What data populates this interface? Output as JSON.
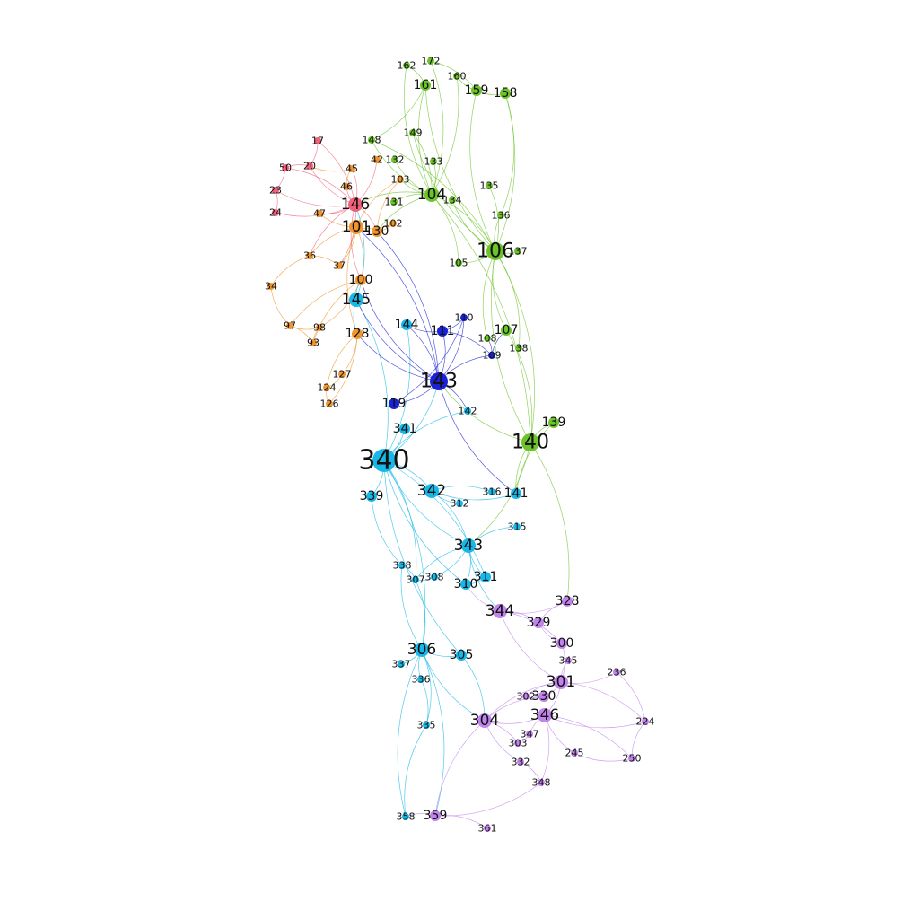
{
  "graph": {
    "communities": {
      "red": {
        "color": "#f0607a"
      },
      "orange": {
        "color": "#f0962e"
      },
      "green": {
        "color": "#6cc42a"
      },
      "blue": {
        "color": "#1a22d6"
      },
      "cyan": {
        "color": "#17b8e8"
      },
      "purple": {
        "color": "#c084ec"
      }
    },
    "nodes": [
      {
        "id": "340",
        "c": "cyan",
        "s": 4
      },
      {
        "id": "140",
        "c": "green",
        "s": 3
      },
      {
        "id": "106",
        "c": "green",
        "s": 3
      },
      {
        "id": "143",
        "c": "blue",
        "s": 3
      },
      {
        "id": "306",
        "c": "cyan",
        "s": 2
      },
      {
        "id": "342",
        "c": "cyan",
        "s": 2
      },
      {
        "id": "343",
        "c": "cyan",
        "s": 2
      },
      {
        "id": "344",
        "c": "purple",
        "s": 2
      },
      {
        "id": "145",
        "c": "cyan",
        "s": 2
      },
      {
        "id": "146",
        "c": "red",
        "s": 2
      },
      {
        "id": "104",
        "c": "green",
        "s": 2
      },
      {
        "id": "301",
        "c": "purple",
        "s": 2
      },
      {
        "id": "304",
        "c": "purple",
        "s": 2
      },
      {
        "id": "346",
        "c": "purple",
        "s": 2
      },
      {
        "id": "359",
        "c": "purple",
        "s": 1
      },
      {
        "id": "101",
        "c": "orange",
        "s": 2
      },
      {
        "id": "130",
        "c": "orange",
        "s": 1
      },
      {
        "id": "100",
        "c": "orange",
        "s": 1
      },
      {
        "id": "144",
        "c": "cyan",
        "s": 1
      },
      {
        "id": "128",
        "c": "orange",
        "s": 1
      },
      {
        "id": "141",
        "c": "cyan",
        "s": 1
      },
      {
        "id": "139",
        "c": "green",
        "s": 1
      },
      {
        "id": "107",
        "c": "green",
        "s": 1
      },
      {
        "id": "159",
        "c": "green",
        "s": 1
      },
      {
        "id": "158",
        "c": "green",
        "s": 1
      },
      {
        "id": "161",
        "c": "green",
        "s": 1
      },
      {
        "id": "105",
        "c": "green",
        "s": 0
      },
      {
        "id": "137",
        "c": "green",
        "s": 0
      },
      {
        "id": "136",
        "c": "green",
        "s": 0
      },
      {
        "id": "135",
        "c": "green",
        "s": 0
      },
      {
        "id": "134",
        "c": "green",
        "s": 0
      },
      {
        "id": "133",
        "c": "green",
        "s": 0
      },
      {
        "id": "132",
        "c": "green",
        "s": 0
      },
      {
        "id": "131",
        "c": "green",
        "s": 0
      },
      {
        "id": "108",
        "c": "green",
        "s": 0
      },
      {
        "id": "138",
        "c": "green",
        "s": 0
      },
      {
        "id": "148",
        "c": "green",
        "s": 0
      },
      {
        "id": "149",
        "c": "green",
        "s": 0
      },
      {
        "id": "160",
        "c": "green",
        "s": 0
      },
      {
        "id": "172",
        "c": "green",
        "s": 0
      },
      {
        "id": "162",
        "c": "green",
        "s": 0
      },
      {
        "id": "341",
        "c": "cyan",
        "s": 1
      },
      {
        "id": "339",
        "c": "cyan",
        "s": 1
      },
      {
        "id": "312",
        "c": "cyan",
        "s": 0
      },
      {
        "id": "316",
        "c": "cyan",
        "s": 0
      },
      {
        "id": "315",
        "c": "cyan",
        "s": 0
      },
      {
        "id": "311",
        "c": "cyan",
        "s": 1
      },
      {
        "id": "310",
        "c": "cyan",
        "s": 1
      },
      {
        "id": "307",
        "c": "cyan",
        "s": 0
      },
      {
        "id": "308",
        "c": "cyan",
        "s": 0
      },
      {
        "id": "338",
        "c": "cyan",
        "s": 0
      },
      {
        "id": "305",
        "c": "cyan",
        "s": 1
      },
      {
        "id": "337",
        "c": "cyan",
        "s": 0
      },
      {
        "id": "336",
        "c": "cyan",
        "s": 0
      },
      {
        "id": "335",
        "c": "cyan",
        "s": 0
      },
      {
        "id": "358",
        "c": "cyan",
        "s": 0
      },
      {
        "id": "142",
        "c": "cyan",
        "s": 0
      },
      {
        "id": "300",
        "c": "purple",
        "s": 1
      },
      {
        "id": "329",
        "c": "purple",
        "s": 1
      },
      {
        "id": "328",
        "c": "purple",
        "s": 1
      },
      {
        "id": "330",
        "c": "purple",
        "s": 1
      },
      {
        "id": "302",
        "c": "purple",
        "s": 0
      },
      {
        "id": "303",
        "c": "purple",
        "s": 0
      },
      {
        "id": "347",
        "c": "purple",
        "s": 0
      },
      {
        "id": "348",
        "c": "purple",
        "s": 0
      },
      {
        "id": "345",
        "c": "purple",
        "s": 0
      },
      {
        "id": "332",
        "c": "purple",
        "s": 0
      },
      {
        "id": "361",
        "c": "purple",
        "s": 0
      },
      {
        "id": "224",
        "c": "purple",
        "s": 0
      },
      {
        "id": "236",
        "c": "purple",
        "s": 0
      },
      {
        "id": "250",
        "c": "purple",
        "s": 0
      },
      {
        "id": "245",
        "c": "purple",
        "s": 0
      },
      {
        "id": "47",
        "c": "orange",
        "s": 0
      },
      {
        "id": "45",
        "c": "orange",
        "s": 0
      },
      {
        "id": "97",
        "c": "orange",
        "s": 0
      },
      {
        "id": "98",
        "c": "orange",
        "s": 0
      },
      {
        "id": "93",
        "c": "orange",
        "s": 0
      },
      {
        "id": "127",
        "c": "orange",
        "s": 0
      },
      {
        "id": "124",
        "c": "orange",
        "s": 0
      },
      {
        "id": "126",
        "c": "orange",
        "s": 0
      },
      {
        "id": "36",
        "c": "orange",
        "s": 0
      },
      {
        "id": "37",
        "c": "orange",
        "s": 0
      },
      {
        "id": "34",
        "c": "orange",
        "s": 0
      },
      {
        "id": "103",
        "c": "orange",
        "s": 0
      },
      {
        "id": "102",
        "c": "orange",
        "s": 0
      },
      {
        "id": "42",
        "c": "orange",
        "s": 0
      },
      {
        "id": "46",
        "c": "orange",
        "s": 0
      },
      {
        "id": "20",
        "c": "red",
        "s": 0
      },
      {
        "id": "50",
        "c": "red",
        "s": 0
      },
      {
        "id": "24",
        "c": "red",
        "s": 0
      },
      {
        "id": "17",
        "c": "red",
        "s": 0
      },
      {
        "id": "23",
        "c": "red",
        "s": 0
      },
      {
        "id": "111",
        "c": "blue",
        "s": 1
      },
      {
        "id": "119",
        "c": "blue",
        "s": 1
      },
      {
        "id": "110",
        "c": "blue",
        "s": 0
      },
      {
        "id": "109",
        "c": "blue",
        "s": 0
      }
    ],
    "edges": [
      [
        "340",
        "143"
      ],
      [
        "340",
        "342"
      ],
      [
        "340",
        "341"
      ],
      [
        "340",
        "339"
      ],
      [
        "340",
        "145"
      ],
      [
        "340",
        "306"
      ],
      [
        "340",
        "144"
      ],
      [
        "340",
        "142"
      ],
      [
        "340",
        "343"
      ],
      [
        "340",
        "311"
      ],
      [
        "340",
        "310"
      ],
      [
        "340",
        "307"
      ],
      [
        "340",
        "305"
      ],
      [
        "140",
        "139"
      ],
      [
        "140",
        "107"
      ],
      [
        "140",
        "106"
      ],
      [
        "140",
        "104"
      ],
      [
        "140",
        "143"
      ],
      [
        "140",
        "141"
      ],
      [
        "140",
        "343"
      ],
      [
        "106",
        "104"
      ],
      [
        "106",
        "105"
      ],
      [
        "106",
        "137"
      ],
      [
        "106",
        "136"
      ],
      [
        "106",
        "135"
      ],
      [
        "106",
        "134"
      ],
      [
        "106",
        "108"
      ],
      [
        "106",
        "138"
      ],
      [
        "106",
        "107"
      ],
      [
        "106",
        "159"
      ],
      [
        "106",
        "158"
      ],
      [
        "106",
        "161"
      ],
      [
        "106",
        "148"
      ],
      [
        "106",
        "149"
      ],
      [
        "104",
        "133"
      ],
      [
        "104",
        "132"
      ],
      [
        "104",
        "131"
      ],
      [
        "104",
        "148"
      ],
      [
        "104",
        "160"
      ],
      [
        "104",
        "162"
      ],
      [
        "104",
        "172"
      ],
      [
        "104",
        "161"
      ],
      [
        "104",
        "149"
      ],
      [
        "104",
        "103"
      ],
      [
        "104",
        "130"
      ],
      [
        "104",
        "105"
      ],
      [
        "159",
        "158"
      ],
      [
        "159",
        "160"
      ],
      [
        "159",
        "172"
      ],
      [
        "158",
        "136"
      ],
      [
        "161",
        "162"
      ],
      [
        "161",
        "148"
      ],
      [
        "143",
        "111"
      ],
      [
        "143",
        "119"
      ],
      [
        "143",
        "110"
      ],
      [
        "143",
        "109"
      ],
      [
        "143",
        "144"
      ],
      [
        "143",
        "142"
      ],
      [
        "143",
        "141"
      ],
      [
        "143",
        "128"
      ],
      [
        "143",
        "130"
      ],
      [
        "143",
        "145"
      ],
      [
        "143",
        "101"
      ],
      [
        "143",
        "100"
      ],
      [
        "111",
        "110"
      ],
      [
        "111",
        "109"
      ],
      [
        "119",
        "110"
      ],
      [
        "109",
        "107"
      ],
      [
        "109",
        "108"
      ],
      [
        "111",
        "144"
      ],
      [
        "146",
        "101"
      ],
      [
        "146",
        "130"
      ],
      [
        "146",
        "100"
      ],
      [
        "146",
        "47"
      ],
      [
        "146",
        "45"
      ],
      [
        "146",
        "20"
      ],
      [
        "146",
        "50"
      ],
      [
        "146",
        "24"
      ],
      [
        "146",
        "17"
      ],
      [
        "146",
        "23"
      ],
      [
        "146",
        "36"
      ],
      [
        "146",
        "37"
      ],
      [
        "146",
        "42"
      ],
      [
        "146",
        "46"
      ],
      [
        "101",
        "130"
      ],
      [
        "101",
        "100"
      ],
      [
        "101",
        "128"
      ],
      [
        "101",
        "47"
      ],
      [
        "101",
        "36"
      ],
      [
        "101",
        "37"
      ],
      [
        "101",
        "102"
      ],
      [
        "101",
        "103"
      ],
      [
        "130",
        "102"
      ],
      [
        "130",
        "103"
      ],
      [
        "100",
        "97"
      ],
      [
        "100",
        "98"
      ],
      [
        "100",
        "93"
      ],
      [
        "128",
        "127"
      ],
      [
        "128",
        "124"
      ],
      [
        "128",
        "126"
      ],
      [
        "97",
        "98"
      ],
      [
        "97",
        "93"
      ],
      [
        "98",
        "93"
      ],
      [
        "127",
        "124"
      ],
      [
        "124",
        "126"
      ],
      [
        "34",
        "36"
      ],
      [
        "34",
        "97"
      ],
      [
        "36",
        "37"
      ],
      [
        "45",
        "46"
      ],
      [
        "45",
        "20"
      ],
      [
        "20",
        "50"
      ],
      [
        "50",
        "23"
      ],
      [
        "24",
        "23"
      ],
      [
        "17",
        "20"
      ],
      [
        "145",
        "128"
      ],
      [
        "145",
        "100"
      ],
      [
        "145",
        "146"
      ],
      [
        "342",
        "343"
      ],
      [
        "342",
        "312"
      ],
      [
        "342",
        "316"
      ],
      [
        "342",
        "141"
      ],
      [
        "343",
        "315"
      ],
      [
        "343",
        "311"
      ],
      [
        "343",
        "310"
      ],
      [
        "343",
        "344"
      ],
      [
        "343",
        "308"
      ],
      [
        "343",
        "307"
      ],
      [
        "311",
        "310"
      ],
      [
        "307",
        "308"
      ],
      [
        "338",
        "307"
      ],
      [
        "306",
        "305"
      ],
      [
        "306",
        "337"
      ],
      [
        "306",
        "336"
      ],
      [
        "306",
        "335"
      ],
      [
        "306",
        "358"
      ],
      [
        "306",
        "338"
      ],
      [
        "306",
        "307"
      ],
      [
        "306",
        "359"
      ],
      [
        "306",
        "304"
      ],
      [
        "305",
        "304"
      ],
      [
        "335",
        "358"
      ],
      [
        "336",
        "335"
      ],
      [
        "339",
        "338"
      ],
      [
        "344",
        "329"
      ],
      [
        "344",
        "328"
      ],
      [
        "344",
        "300"
      ],
      [
        "344",
        "301"
      ],
      [
        "344",
        "310"
      ],
      [
        "301",
        "300"
      ],
      [
        "301",
        "330"
      ],
      [
        "301",
        "302"
      ],
      [
        "301",
        "345"
      ],
      [
        "301",
        "236"
      ],
      [
        "301",
        "224"
      ],
      [
        "301",
        "304"
      ],
      [
        "301",
        "346"
      ],
      [
        "304",
        "346"
      ],
      [
        "304",
        "303"
      ],
      [
        "304",
        "332"
      ],
      [
        "304",
        "330"
      ],
      [
        "346",
        "347"
      ],
      [
        "346",
        "348"
      ],
      [
        "346",
        "245"
      ],
      [
        "346",
        "250"
      ],
      [
        "346",
        "224"
      ],
      [
        "359",
        "361"
      ],
      [
        "359",
        "358"
      ],
      [
        "359",
        "304"
      ],
      [
        "359",
        "348"
      ],
      [
        "300",
        "329"
      ],
      [
        "328",
        "329"
      ],
      [
        "330",
        "302"
      ],
      [
        "303",
        "347"
      ],
      [
        "332",
        "348"
      ],
      [
        "224",
        "250"
      ],
      [
        "236",
        "224"
      ],
      [
        "245",
        "250"
      ],
      [
        "140",
        "328"
      ],
      [
        "139",
        "141"
      ],
      [
        "106",
        "140"
      ],
      [
        "104",
        "146"
      ]
    ]
  }
}
